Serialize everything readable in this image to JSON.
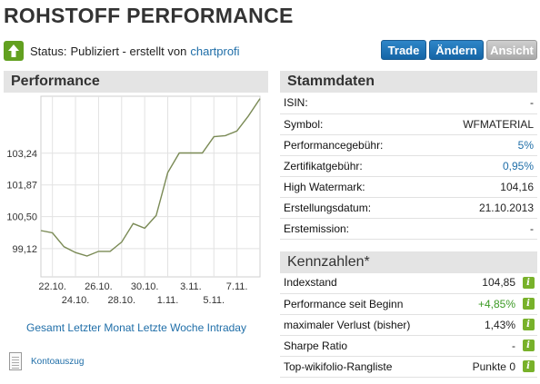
{
  "title": "ROHSTOFF PERFORMANCE",
  "status": {
    "label": "Status:",
    "text": "Publiziert - erstellt von",
    "author": "chartprofi",
    "icon": "upload-arrow-icon"
  },
  "actions": {
    "trade": "Trade",
    "edit": "Ändern",
    "view": "Ansicht"
  },
  "performance": {
    "heading": "Performance",
    "ranges": [
      "Gesamt",
      "Letzter Monat",
      "Letzte Woche",
      "Intraday"
    ],
    "kontoauszug": "Kontoauszug"
  },
  "chart_data": {
    "type": "line",
    "title": "",
    "xlabel": "",
    "ylabel": "",
    "ylim": [
      97.9,
      105.7
    ],
    "yticks": [
      99.12,
      100.5,
      101.87,
      103.24
    ],
    "ytick_labels": [
      "99,12",
      "100,50",
      "101,87",
      "103,24"
    ],
    "xticks": [
      {
        "label": "22.10.",
        "day": 1,
        "row": 1
      },
      {
        "label": "24.10.",
        "day": 3,
        "row": 2
      },
      {
        "label": "26.10.",
        "day": 5,
        "row": 1
      },
      {
        "label": "28.10.",
        "day": 7,
        "row": 2
      },
      {
        "label": "30.10.",
        "day": 9,
        "row": 1
      },
      {
        "label": "1.11.",
        "day": 11,
        "row": 2
      },
      {
        "label": "3.11.",
        "day": 13,
        "row": 1
      },
      {
        "label": "5.11.",
        "day": 15,
        "row": 2
      },
      {
        "label": "7.11.",
        "day": 17,
        "row": 1
      }
    ],
    "grid": true,
    "series": [
      {
        "color": "#7a8a55",
        "x": [
          0,
          1,
          2,
          3,
          4,
          5,
          6,
          7,
          8,
          9,
          10,
          11,
          12,
          13,
          14,
          15,
          16,
          17,
          18,
          19
        ],
        "y": [
          99.9,
          99.8,
          99.2,
          98.95,
          98.8,
          99.0,
          99.0,
          99.4,
          100.2,
          100.0,
          100.55,
          102.4,
          103.25,
          103.25,
          103.25,
          103.95,
          104.0,
          104.2,
          104.85,
          105.6
        ]
      }
    ]
  },
  "stammdaten": {
    "heading": "Stammdaten",
    "rows": [
      {
        "label": "ISIN:",
        "value": "-",
        "style": ""
      },
      {
        "label": "Symbol:",
        "value": "WFMATERIAL",
        "style": ""
      },
      {
        "label": "Performancegebühr:",
        "value": "5%",
        "style": "link"
      },
      {
        "label": "Zertifikatgebühr:",
        "value": "0,95%",
        "style": "link"
      },
      {
        "label": "High Watermark:",
        "value": "104,16",
        "style": ""
      },
      {
        "label": "Erstellungsdatum:",
        "value": "21.10.2013",
        "style": ""
      },
      {
        "label": "Erstemission:",
        "value": "-",
        "style": ""
      }
    ]
  },
  "kennzahlen": {
    "heading": "Kennzahlen*",
    "info_icon": "info-icon",
    "rows": [
      {
        "label": "Indexstand",
        "value": "104,85",
        "style": ""
      },
      {
        "label": "Performance seit Beginn",
        "value": "+4,85%",
        "style": "green"
      },
      {
        "label": "maximaler Verlust (bisher)",
        "value": "1,43%",
        "style": ""
      },
      {
        "label": "Sharpe Ratio",
        "value": "-",
        "style": ""
      },
      {
        "label": "Top-wikifolio-Rangliste",
        "value": "Punkte 0",
        "style": ""
      }
    ]
  },
  "colors": {
    "accent_blue": "#1f6ea8",
    "button_blue": "#1565a6",
    "green": "#62a020",
    "panel_bg": "#e4e4e4"
  }
}
